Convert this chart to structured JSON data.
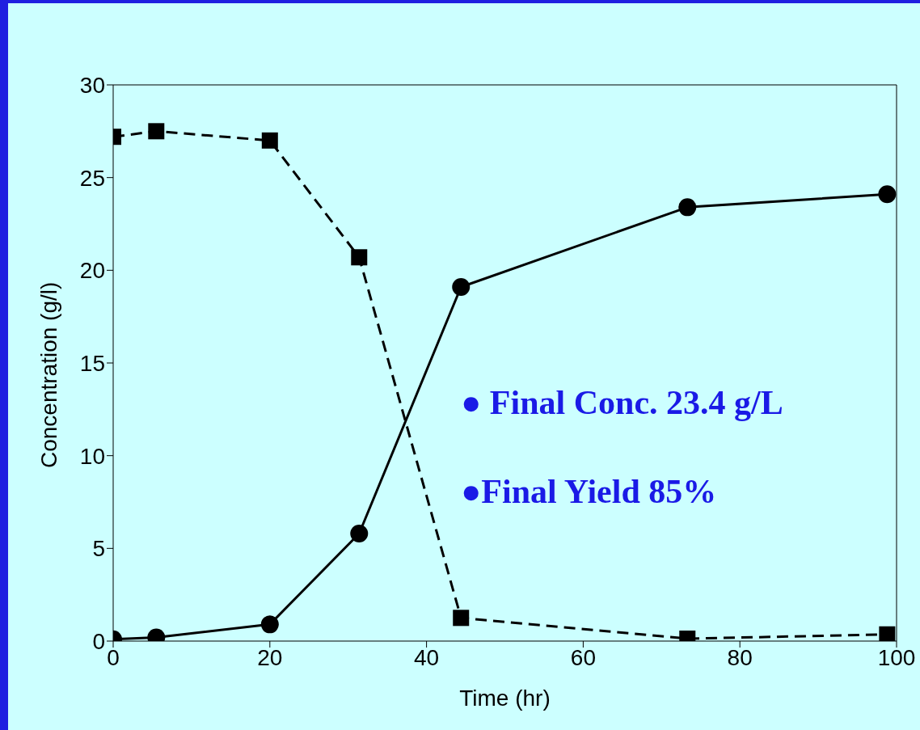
{
  "chart_data": {
    "type": "line",
    "xlabel": "Time (hr)",
    "ylabel": "Concentration (g/l)",
    "xlim": [
      0,
      100
    ],
    "xticks": [
      0,
      20,
      40,
      60,
      80,
      100
    ],
    "ylim": [
      0,
      30
    ],
    "yticks": [
      0,
      5,
      10,
      15,
      20,
      25,
      30
    ],
    "grid": false,
    "legend": false,
    "x": [
      0,
      5.5,
      20,
      31.4,
      44.4,
      73.3,
      98.8
    ],
    "series": [
      {
        "color": "#000000",
        "marker": "square",
        "line_style": "dashed",
        "values": [
          27.2,
          27.5,
          27.0,
          20.7,
          1.25,
          0.13,
          0.36
        ]
      },
      {
        "color": "#000000",
        "marker": "circle",
        "line_style": "solid",
        "values": [
          0.1,
          0.2,
          0.9,
          5.8,
          19.1,
          23.4,
          24.1
        ]
      }
    ],
    "annotations": [
      "● Final Conc. 23.4 g/L",
      "●Final Yield 85%"
    ]
  }
}
